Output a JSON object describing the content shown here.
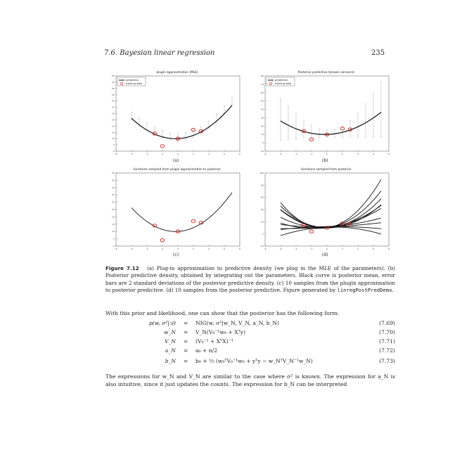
{
  "header": {
    "section": "7.6.  Bayesian linear regression",
    "page": "235"
  },
  "colors": {
    "curve": "#111111",
    "marker": "#d62020",
    "errorbar": "#b0b0b0"
  },
  "figure": {
    "panels": [
      {
        "label": "(a)",
        "title": "plugin approximation (MLE)",
        "legend": [
          "prediction",
          "training data"
        ],
        "xticks": [
          "-8",
          "-6",
          "-4",
          "-2",
          "0",
          "2",
          "4",
          "6",
          "8"
        ],
        "yticks": [
          "0",
          "5",
          "10",
          "15",
          "20",
          "25",
          "30",
          "35",
          "40",
          "45",
          "50",
          "55",
          "60"
        ],
        "chart_data": {
          "type": "line",
          "xlim": [
            -8,
            8
          ],
          "ylim": [
            0,
            60
          ],
          "mean": {
            "x": [
              -6,
              -5,
              -4,
              -3,
              -2,
              -1,
              0,
              1,
              2,
              3,
              4,
              5,
              6,
              7
            ],
            "y": [
              28,
              23.5,
              19.5,
              16,
              13.5,
              11.5,
              11,
              11.5,
              13.5,
              16.5,
              21,
              26.5,
              33,
              40
            ]
          },
          "errorbar_halfwidth": 3,
          "training_data": {
            "x": [
              -3,
              -2,
              0,
              2,
              3
            ],
            "y": [
              14,
              4,
              10,
              17,
              16
            ]
          }
        }
      },
      {
        "label": "(b)",
        "title": "Posterior predictive (known variance)",
        "legend": [
          "prediction",
          "training data"
        ],
        "xticks": [
          "-8",
          "-6",
          "-4",
          "-2",
          "0",
          "2",
          "4",
          "6",
          "8"
        ],
        "yticks": [
          "-10",
          "0",
          "10",
          "20",
          "30",
          "40",
          "50",
          "60",
          "70",
          "80"
        ],
        "chart_data": {
          "type": "line",
          "xlim": [
            -8,
            8
          ],
          "ylim": [
            -10,
            80
          ],
          "mean": {
            "x": [
              -6,
              -5,
              -4,
              -3,
              -2,
              -1,
              0,
              1,
              2,
              3,
              4,
              5,
              6,
              7
            ],
            "y": [
              28,
              23.5,
              19.5,
              16,
              13.5,
              11.5,
              11,
              11.5,
              13.5,
              16.5,
              21,
              26.5,
              33,
              40
            ]
          },
          "errorbar_halfwidth": [
            25,
            20,
            15,
            10,
            7,
            5,
            5,
            5,
            7,
            10,
            15,
            20,
            26,
            33
          ],
          "training_data": {
            "x": [
              -3,
              -2,
              0,
              2,
              3
            ],
            "y": [
              14,
              4,
              10,
              17,
              16
            ]
          }
        }
      },
      {
        "label": "(c)",
        "title": "functions sampled from plugin approximation to posterior",
        "xticks": [
          "-8",
          "-6",
          "-4",
          "-2",
          "0",
          "2",
          "4",
          "6",
          "8"
        ],
        "yticks": [
          "0",
          "5",
          "10",
          "15",
          "20",
          "25",
          "30",
          "35",
          "40",
          "45",
          "50"
        ],
        "chart_data": {
          "type": "line",
          "xlim": [
            -8,
            8
          ],
          "ylim": [
            0,
            50
          ],
          "samples": [
            {
              "a": 0.5,
              "b": 0.3,
              "c": 10
            }
          ],
          "training_data": {
            "x": [
              -3,
              -2,
              0,
              2,
              3
            ],
            "y": [
              14,
              4,
              10,
              17,
              16
            ]
          }
        }
      },
      {
        "label": "(d)",
        "title": "functions sampled from posterior",
        "xticks": [
          "-8",
          "-6",
          "-4",
          "-2",
          "0",
          "2",
          "4",
          "6",
          "8"
        ],
        "yticks": [
          "-20",
          "0",
          "20",
          "40",
          "60",
          "80",
          "100"
        ],
        "chart_data": {
          "type": "line",
          "xlim": [
            -8,
            8
          ],
          "ylim": [
            -20,
            100
          ],
          "samples": [
            {
              "a": 1.4,
              "b": 1.5,
              "c": 10
            },
            {
              "a": 1.1,
              "b": 0.8,
              "c": 11
            },
            {
              "a": 0.9,
              "b": 0.5,
              "c": 10
            },
            {
              "a": 0.6,
              "b": 0.9,
              "c": 11
            },
            {
              "a": 0.45,
              "b": 1.4,
              "c": 10
            },
            {
              "a": 0.2,
              "b": 0.6,
              "c": 12
            },
            {
              "a": 0.05,
              "b": 0.7,
              "c": 11
            },
            {
              "a": -0.1,
              "b": 0.2,
              "c": 12
            },
            {
              "a": -0.3,
              "b": 0.5,
              "c": 11
            },
            {
              "a": 0.8,
              "b": -0.2,
              "c": 10
            }
          ],
          "training_data": {
            "x": [
              -3,
              -2,
              0,
              2,
              3
            ],
            "y": [
              14,
              4,
              10,
              17,
              16
            ]
          }
        }
      }
    ]
  },
  "caption": {
    "label": "Figure 7.12",
    "text": "(a) Plug-in approximation to predictive density (we plug in the MLE of the parameters). (b) Posterior predictive density, obtained by integrating out the parameters. Black curve is posterior mean, error bars are 2 standard deviations of the posterior predictive density. (c) 10 samples from the plugin approximation to posterior predictive. (d) 10 samples from the posterior predictive. Figure generated by",
    "code": "linregPostPredDemo",
    "end": "."
  },
  "intro": "With this prior and likelihood, one can show that the posterior has the following form:",
  "equations": [
    {
      "lhs": "p(w, σ²|𝒟)",
      "rhs": "NIG(w, σ²|w_N, V_N, a_N, b_N)",
      "num": "(7.69)"
    },
    {
      "lhs": "w_N",
      "rhs": "V_N(V₀⁻¹w₀ + Xᵀy)",
      "num": "(7.70)"
    },
    {
      "lhs": "V_N",
      "rhs": "(V₀⁻¹ + XᵀX)⁻¹",
      "num": "(7.71)"
    },
    {
      "lhs": "a_N",
      "rhs": "a₀ + n/2",
      "num": "(7.72)"
    },
    {
      "lhs": "b_N",
      "rhs": "b₀ + ½ (w₀ᵀV₀⁻¹w₀ + yᵀy − w_NᵀV_N⁻¹w_N)",
      "num": "(7.73)"
    }
  ],
  "equals": "=",
  "closing": "The expressions for w_N and V_N are similar to the case where σ² is known. The expression for a_N is also intuitive, since it just updates the counts. The expression for b_N can be interpreted"
}
